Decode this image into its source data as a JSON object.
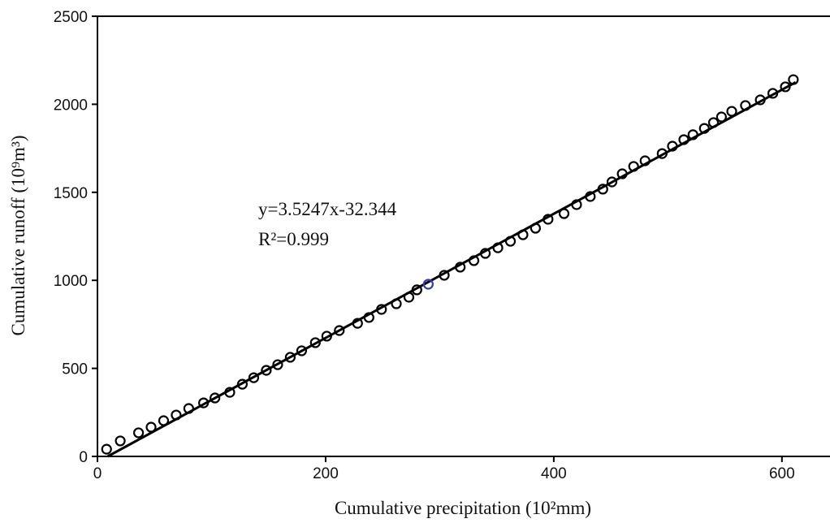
{
  "chart_data": {
    "type": "scatter",
    "xlabel": "Cumulative precipitation (10²mm)",
    "ylabel": "Cumulative runoff (10⁹m³)",
    "annotations": [
      "y=3.5247x-32.344",
      "R²=0.999"
    ],
    "xlim": [
      0,
      640
    ],
    "xticks": [
      0,
      200,
      400,
      600
    ],
    "ylim": [
      0,
      2500
    ],
    "yticks": [
      0,
      500,
      1000,
      1500,
      2000,
      2500
    ],
    "color": "#000000",
    "highlight": {
      "index": 25,
      "color": "#3a3aa8"
    },
    "x": [
      8,
      20,
      36,
      47,
      58,
      69,
      80,
      93,
      103,
      116,
      127,
      137,
      148,
      158,
      169,
      179,
      191,
      201,
      212,
      228,
      238,
      249,
      262,
      273,
      280,
      290,
      304,
      318,
      330,
      340,
      351,
      362,
      373,
      384,
      395,
      409,
      420,
      432,
      443,
      451,
      460,
      470,
      480,
      495,
      504,
      514,
      522,
      532,
      540,
      547,
      556,
      568,
      581,
      592,
      603,
      610
    ],
    "values": [
      41,
      88,
      134,
      166,
      203,
      235,
      272,
      304,
      332,
      364,
      410,
      447,
      489,
      521,
      563,
      600,
      646,
      683,
      715,
      756,
      789,
      835,
      867,
      904,
      946,
      978,
      1029,
      1075,
      1112,
      1153,
      1185,
      1222,
      1259,
      1296,
      1347,
      1379,
      1430,
      1476,
      1518,
      1559,
      1605,
      1647,
      1679,
      1720,
      1762,
      1799,
      1827,
      1863,
      1896,
      1928,
      1960,
      1993,
      2025,
      2062,
      2099,
      2140
    ],
    "fit_line": {
      "x": [
        9,
        612
      ],
      "values": [
        0,
        2125
      ],
      "color": "#000000"
    }
  }
}
